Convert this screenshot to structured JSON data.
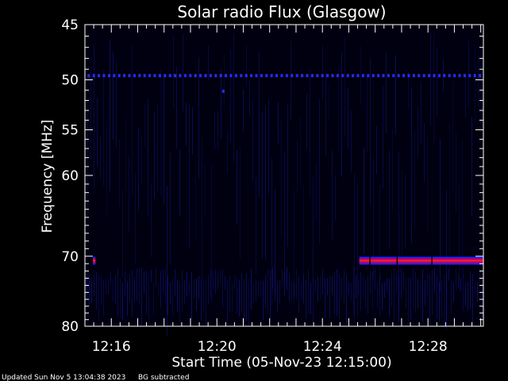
{
  "footer": {
    "updated": "Updated Sun Nov  5 13:04:38 2023",
    "note": "BG subtracted"
  },
  "colors": {
    "background": "#000000",
    "axes": "#ffffff",
    "plot_background": "#000010",
    "noise": "#14148c",
    "dotted_line": "#2a2aff",
    "signal_outer": "#2020ff",
    "signal_mid": "#c00060",
    "signal_core": "#ff2020"
  },
  "chart_data": {
    "type": "heatmap",
    "title": "Solar radio Flux (Glasgow)",
    "xlabel": "Start Time (05-Nov-23 12:15:00)",
    "ylabel": "Frequency [MHz]",
    "xlim_minutes": [
      0,
      15.1
    ],
    "ylim": [
      45,
      80
    ],
    "y_scale": "log",
    "y_reversed": true,
    "x_ticks": [
      {
        "minutes": 1,
        "label": "12:16"
      },
      {
        "minutes": 5,
        "label": "12:20"
      },
      {
        "minutes": 9,
        "label": "12:24"
      },
      {
        "minutes": 13,
        "label": "12:28"
      }
    ],
    "y_ticks": [
      45,
      50,
      55,
      60,
      70,
      80
    ],
    "features": [
      {
        "name": "dotted emission line",
        "frequency_mhz": 49.6,
        "start_minutes": 0.1,
        "end_minutes": 15.1
      },
      {
        "name": "strong emission band",
        "frequency_mhz": 70.6,
        "start_minutes": 10.4,
        "end_minutes": 15.1
      },
      {
        "name": "brief emission",
        "frequency_mhz": 70.6,
        "start_minutes": 0.3,
        "end_minutes": 0.4
      },
      {
        "name": "isolated spot",
        "frequency_mhz": 51.1,
        "start_minutes": 5.2,
        "end_minutes": 5.3
      }
    ]
  }
}
